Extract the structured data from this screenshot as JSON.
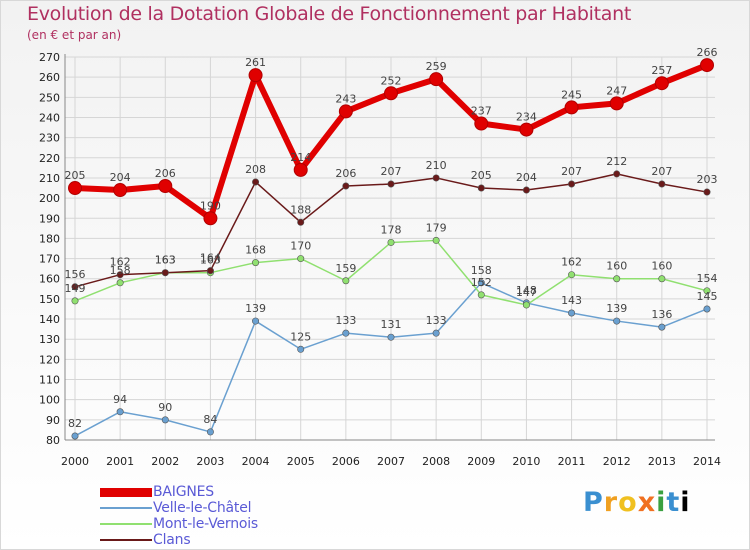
{
  "chart_data": {
    "type": "line",
    "title": "Evolution de la Dotation Globale de Fonctionnement par Habitant",
    "subtitle": "(en € et par an)",
    "x": [
      "2000",
      "2001",
      "2002",
      "2003",
      "2004",
      "2005",
      "2006",
      "2007",
      "2008",
      "2009",
      "2010",
      "2011",
      "2012",
      "2013",
      "2014"
    ],
    "ylim": [
      80,
      270
    ],
    "yticks": [
      80,
      90,
      100,
      110,
      120,
      130,
      140,
      150,
      160,
      170,
      180,
      190,
      200,
      210,
      220,
      230,
      240,
      250,
      260,
      270
    ],
    "grid": true,
    "series": [
      {
        "name": "BAIGNES",
        "color": "#e00000",
        "values": [
          205,
          204,
          206,
          190,
          261,
          214,
          243,
          252,
          259,
          237,
          234,
          245,
          247,
          257,
          266
        ]
      },
      {
        "name": "Velle-le-Châtel",
        "color": "#6aa0d0",
        "values": [
          82,
          94,
          90,
          84,
          139,
          125,
          133,
          131,
          133,
          158,
          148,
          143,
          139,
          136,
          145
        ]
      },
      {
        "name": "Mont-le-Vernois",
        "color": "#90e070",
        "values": [
          149,
          158,
          163,
          163,
          168,
          170,
          159,
          178,
          179,
          152,
          147,
          162,
          160,
          160,
          154
        ]
      },
      {
        "name": "Clans",
        "color": "#6a1a1a",
        "values": [
          156,
          162,
          163,
          164,
          208,
          188,
          206,
          207,
          210,
          205,
          204,
          207,
          212,
          207,
          203
        ]
      }
    ]
  },
  "logo": {
    "letters": [
      "P",
      "r",
      "o",
      "x",
      "i",
      "t",
      "i"
    ]
  }
}
